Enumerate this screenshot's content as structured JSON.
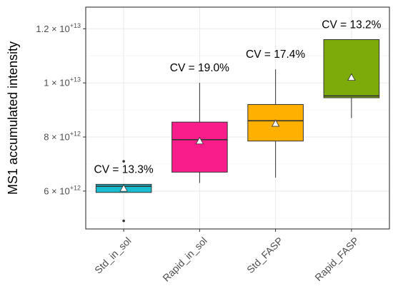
{
  "chart_data": {
    "type": "box",
    "ylabel": "MS1 accumulated intensity",
    "ylim": [
      4600000000000.0,
      12800000000000.0
    ],
    "y_ticks": [
      {
        "value": 6000000000000.0,
        "mantissa": "6",
        "exponent": "+12"
      },
      {
        "value": 8000000000000.0,
        "mantissa": "8",
        "exponent": "+12"
      },
      {
        "value": 10000000000000.0,
        "mantissa": "1",
        "exponent": "+13"
      },
      {
        "value": 12000000000000.0,
        "mantissa": "1.2",
        "exponent": "+13"
      }
    ],
    "grid": true,
    "categories": [
      "Std_in_sol",
      "Rapid_in_sol",
      "Std_FASP",
      "Rapid_FASP"
    ],
    "series": [
      {
        "category": "Std_in_sol",
        "color": "#17becf",
        "whisker_low": 5950000000000.0,
        "q1": 5950000000000.0,
        "median": 6180000000000.0,
        "q3": 6250000000000.0,
        "whisker_high": 6250000000000.0,
        "mean": 6100000000000.0,
        "outliers": [
          7100000000000.0,
          4900000000000.0
        ],
        "annotation": "CV = 13.3%"
      },
      {
        "category": "Rapid_in_sol",
        "color": "#f81d8a",
        "whisker_low": 6300000000000.0,
        "q1": 6700000000000.0,
        "median": 7900000000000.0,
        "q3": 8550000000000.0,
        "whisker_high": 10000000000000.0,
        "mean": 7850000000000.0,
        "outliers": [],
        "annotation": "CV = 19.0%"
      },
      {
        "category": "Std_FASP",
        "color": "#ffb000",
        "whisker_low": 6500000000000.0,
        "q1": 7850000000000.0,
        "median": 8600000000000.0,
        "q3": 9200000000000.0,
        "whisker_high": 10500000000000.0,
        "mean": 8500000000000.0,
        "outliers": [],
        "annotation": "CV = 17.4%"
      },
      {
        "category": "Rapid_FASP",
        "color": "#7cab0a",
        "whisker_low": 8700000000000.0,
        "q1": 9450000000000.0,
        "median": 9520000000000.0,
        "q3": 11600000000000.0,
        "whisker_high": 11600000000000.0,
        "mean": 10200000000000.0,
        "outliers": [],
        "annotation": "CV = 13.2%"
      }
    ]
  }
}
